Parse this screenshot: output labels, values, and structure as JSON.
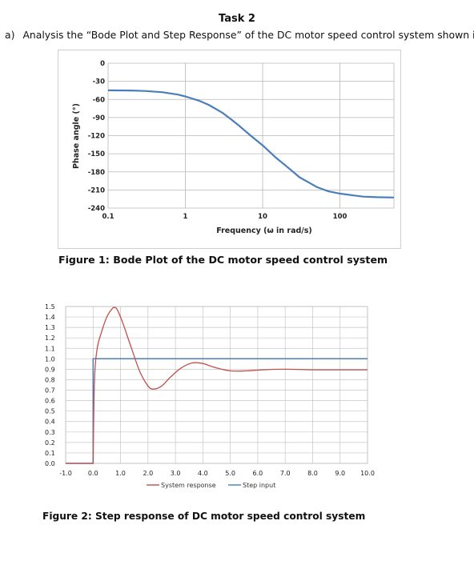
{
  "task": {
    "title": "Task 2",
    "question_label": "a)",
    "question_text": "Analysis the “Bode Plot and Step Response” of the DC motor speed control system shown in"
  },
  "figure1": {
    "caption": "Figure 1: Bode Plot of the DC motor speed control system"
  },
  "figure2": {
    "caption": "Figure 2: Step response of DC motor speed control system"
  },
  "chart_data": [
    {
      "type": "line",
      "xlabel": "Frequency (ω in rad/s)",
      "ylabel": "Phase angle (°)",
      "xscale": "log",
      "xlim": [
        0.1,
        500
      ],
      "ylim": [
        -240,
        0
      ],
      "x_ticks": [
        0.1,
        1,
        10,
        100
      ],
      "x_tick_labels": [
        "0.1",
        "1",
        "10",
        "100"
      ],
      "y_ticks": [
        0,
        -30,
        -60,
        -90,
        -120,
        -150,
        -180,
        -210,
        -240
      ],
      "y_tick_labels": [
        "0",
        "-30",
        "-60",
        "-90",
        "-120",
        "-150",
        "-180",
        "-210",
        "-240"
      ],
      "grid": true,
      "series": [
        {
          "color": "#4a7ebb",
          "x": [
            0.1,
            0.2,
            0.3,
            0.5,
            0.8,
            1,
            1.5,
            2,
            3,
            4,
            5,
            7,
            10,
            15,
            20,
            30,
            50,
            70,
            100,
            150,
            200,
            300,
            500
          ],
          "y": [
            -45,
            -45.2,
            -46,
            -48,
            -52,
            -55,
            -62,
            -69,
            -82,
            -94,
            -104,
            -120,
            -136,
            -157,
            -170,
            -189,
            -205,
            -212,
            -216,
            -219,
            -221,
            -222,
            -222.5
          ]
        }
      ]
    },
    {
      "type": "line",
      "xlim": [
        -1.0,
        10.0
      ],
      "ylim": [
        0.0,
        1.5
      ],
      "x_tick_labels": [
        "-1.0",
        "0.0",
        "1.0",
        "2.0",
        "3.0",
        "4.0",
        "5.0",
        "6.0",
        "7.0",
        "8.0",
        "9.0",
        "10.0"
      ],
      "y_tick_labels": [
        "0.0",
        "0.1",
        "0.2",
        "0.3",
        "0.4",
        "0.5",
        "0.6",
        "0.7",
        "0.8",
        "0.9",
        "1.0",
        "1.1",
        "1.2",
        "1.3",
        "1.4",
        "1.5"
      ],
      "grid": true,
      "legend": "bottom",
      "series": [
        {
          "name": "System response",
          "color": "#c0504d",
          "x": [
            -1.0,
            0.0,
            0.05,
            0.15,
            0.3,
            0.5,
            0.7,
            0.8,
            0.9,
            1.1,
            1.4,
            1.7,
            2.0,
            2.2,
            2.5,
            2.8,
            3.2,
            3.6,
            4.0,
            4.4,
            5.0,
            5.6,
            6.2,
            7.0,
            8.0,
            9.0,
            10.0
          ],
          "y": [
            0.0,
            0.0,
            0.8,
            1.1,
            1.25,
            1.4,
            1.48,
            1.49,
            1.46,
            1.33,
            1.1,
            0.88,
            0.74,
            0.71,
            0.74,
            0.82,
            0.91,
            0.96,
            0.955,
            0.92,
            0.885,
            0.885,
            0.895,
            0.9,
            0.895,
            0.895,
            0.895
          ]
        },
        {
          "name": "Step input",
          "color": "#4a7ebb",
          "x": [
            -1.0,
            0.0,
            0.0,
            10.0
          ],
          "y": [
            0.0,
            0.0,
            1.0,
            1.0
          ]
        }
      ]
    }
  ]
}
